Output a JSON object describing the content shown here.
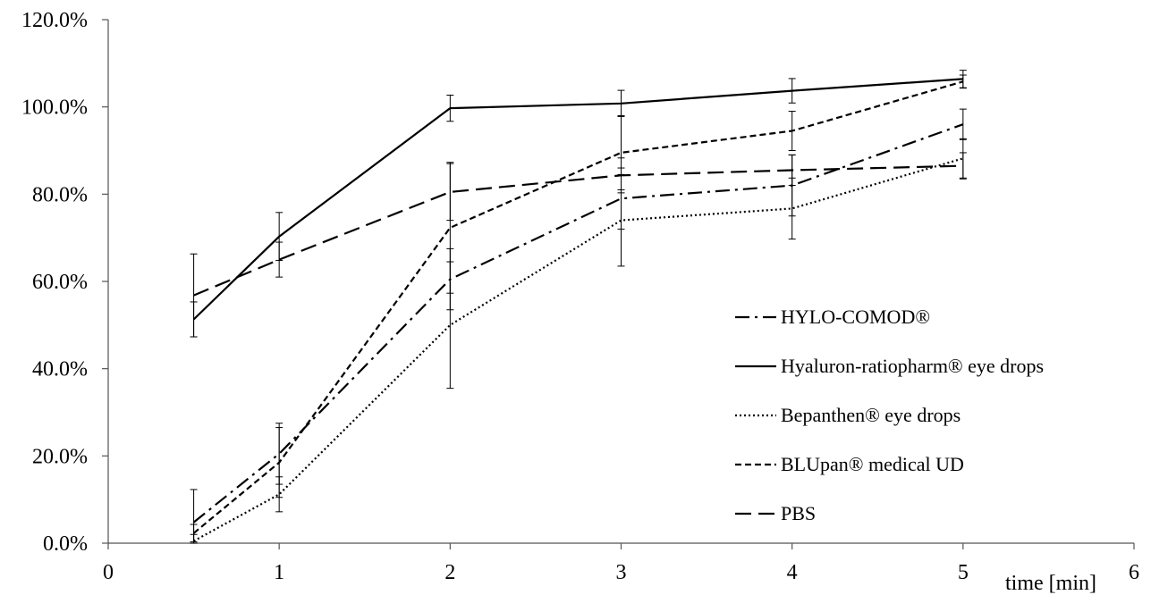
{
  "chart_data": {
    "type": "line",
    "title": "",
    "xlabel": "time [min]",
    "ylabel": "",
    "xlim": [
      0,
      6
    ],
    "ylim": [
      0,
      120
    ],
    "x_ticks": [
      "0",
      "1",
      "2",
      "3",
      "4",
      "5",
      "6"
    ],
    "y_ticks": [
      "0.0%",
      "20.0%",
      "40.0%",
      "60.0%",
      "80.0%",
      "100.0%",
      "120.0%"
    ],
    "legend_position": "right",
    "grid": false,
    "series": [
      {
        "name": "HYLO-COMOD®",
        "dash": "dashdot",
        "x": [
          0.5,
          1,
          2,
          3,
          4,
          5
        ],
        "y": [
          4.8,
          20.5,
          60.5,
          79.0,
          82.0,
          96.0
        ],
        "err": [
          7.5,
          7.0,
          7.0,
          7.0,
          7.0,
          3.5
        ]
      },
      {
        "name": "Hyaluron-ratiopharm® eye drops",
        "dash": "solid",
        "x": [
          0.5,
          1,
          2,
          3,
          4,
          5
        ],
        "y": [
          51.3,
          70.3,
          99.7,
          100.8,
          103.7,
          106.4
        ],
        "err": [
          4.0,
          5.5,
          3.0,
          3.0,
          2.8,
          2.0
        ]
      },
      {
        "name": "Bepanthen® eye drops",
        "dash": "dotted",
        "x": [
          0.5,
          1,
          2,
          3,
          4,
          5
        ],
        "y": [
          0.5,
          11.2,
          50.0,
          74.0,
          76.7,
          88.2
        ],
        "err": [
          1.5,
          4.0,
          14.5,
          10.5,
          7.0,
          4.5
        ]
      },
      {
        "name": "BLUpan® medical UD",
        "dash": "shortdash",
        "x": [
          0.5,
          1,
          2,
          3,
          4,
          5
        ],
        "y": [
          2.3,
          18.5,
          72.3,
          89.5,
          94.5,
          105.8
        ],
        "err": [
          2.0,
          8.0,
          15.0,
          8.5,
          4.5,
          1.5
        ]
      },
      {
        "name": "PBS",
        "dash": "longdash",
        "x": [
          0.5,
          1,
          2,
          3,
          4,
          5
        ],
        "y": [
          56.8,
          65.0,
          80.5,
          84.3,
          85.5,
          86.5
        ],
        "err": [
          9.5,
          4.0,
          6.5,
          4.0,
          3.5,
          3.0
        ]
      }
    ]
  }
}
